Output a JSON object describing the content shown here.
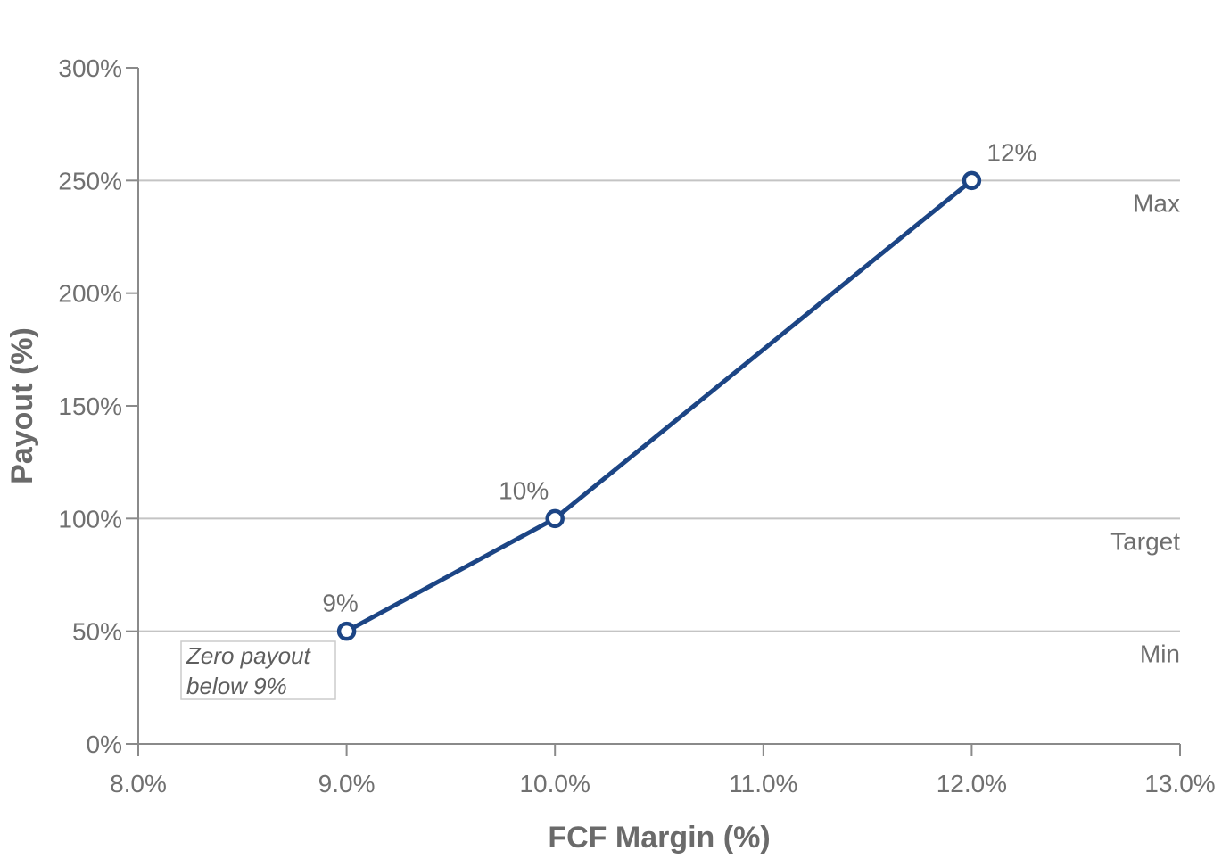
{
  "chart_data": {
    "type": "line",
    "title": "",
    "xlabel": "FCF Margin (%)",
    "ylabel": "Payout (%)",
    "xlim": [
      8.0,
      13.0
    ],
    "ylim": [
      0,
      300
    ],
    "x_ticks": [
      8.0,
      9.0,
      10.0,
      11.0,
      12.0,
      13.0
    ],
    "x_tick_labels": [
      "8.0%",
      "9.0%",
      "10.0%",
      "11.0%",
      "12.0%",
      "13.0%"
    ],
    "y_ticks": [
      0,
      50,
      100,
      150,
      200,
      250,
      300
    ],
    "y_tick_labels": [
      "0%",
      "50%",
      "100%",
      "150%",
      "200%",
      "250%",
      "300%"
    ],
    "grid": false,
    "legend": "none",
    "series": [
      {
        "x": [
          9.0,
          10.0,
          12.0
        ],
        "y": [
          50,
          100,
          250
        ],
        "point_labels": [
          "9%",
          "10%",
          "12%"
        ],
        "color": "#1c4585"
      }
    ],
    "reference_lines": [
      {
        "y": 250,
        "label": "Max"
      },
      {
        "y": 100,
        "label": "Target"
      },
      {
        "y": 50,
        "label": "Min"
      }
    ],
    "annotation": {
      "lines": [
        "Zero payout",
        "below 9%"
      ]
    },
    "colors": {
      "series": "#1c4585",
      "reference_line": "#c4c4c4",
      "axis": "#8a8a8a",
      "text": "#707070"
    }
  }
}
